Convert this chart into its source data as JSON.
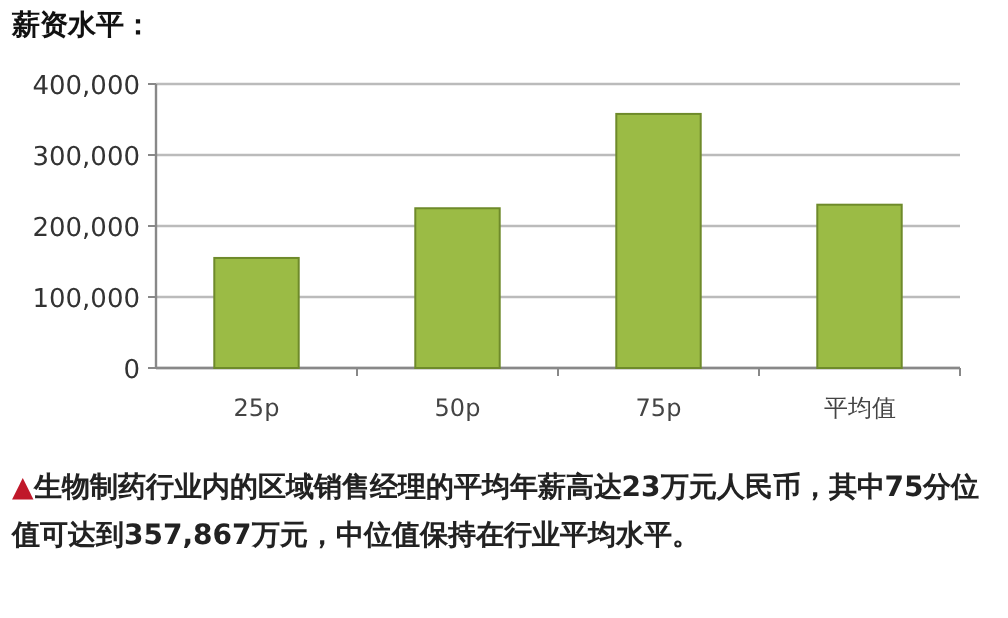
{
  "chart_data": {
    "type": "bar",
    "title": "薪资水平：",
    "categories": [
      "25p",
      "50p",
      "75p",
      "平均值"
    ],
    "series": [
      {
        "color": "#9bbb45",
        "values": [
          155000,
          225000,
          357867,
          230000
        ]
      }
    ],
    "ylim": [
      0,
      400000
    ],
    "yticks": [
      {
        "value": 0,
        "label": "0"
      },
      {
        "value": 100000,
        "label": "100,000"
      },
      {
        "value": 200000,
        "label": "200,000"
      },
      {
        "value": 300000,
        "label": "300,000"
      },
      {
        "value": 400000,
        "label": "400,000"
      }
    ],
    "grid": "y",
    "annotations": [
      "▲生物制药行业内的区域销售经理的平均年薪高达23万元人民币，其中75分位值可达到357,867万元，中位值保持在行业平均水平。"
    ]
  }
}
